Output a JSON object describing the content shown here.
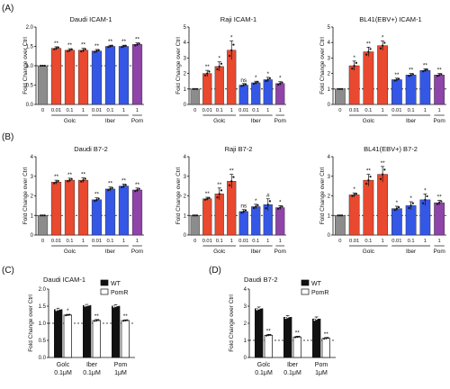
{
  "figure": {
    "panel_labels": [
      "(A)",
      "(B)",
      "(C)",
      "(D)"
    ]
  },
  "colors": {
    "ctrl": "#8c8c8c",
    "golc": "#e8492f",
    "iber": "#3557e6",
    "pom": "#8e44a8",
    "wt": "#111111",
    "pomr": "#ffffff"
  },
  "chart_data": [
    {
      "type": "bar",
      "panel": "(A)",
      "title": "Daudi ICAM-1",
      "ylabel": "Fold Change over Ctrl",
      "ylim": [
        0,
        2.0
      ],
      "yticks": [
        "0.0",
        "0.5",
        "1.0",
        "1.5",
        "2.0"
      ],
      "categories": [
        "0",
        "0.01",
        "0.1",
        "1",
        "0.01",
        "0.1",
        "1",
        "1"
      ],
      "groups": [
        "Golc",
        "Iber",
        "Pom"
      ],
      "values": [
        1.0,
        1.45,
        1.4,
        1.4,
        1.38,
        1.5,
        1.5,
        1.55
      ],
      "errors": [
        0.0,
        0.04,
        0.04,
        0.05,
        0.04,
        0.03,
        0.03,
        0.04
      ],
      "significance": [
        "",
        "**",
        "**",
        "**",
        "**",
        "**",
        "**",
        "**"
      ]
    },
    {
      "type": "bar",
      "panel": "(A)",
      "title": "Raji ICAM-1",
      "ylabel": "Fold Change over Ctrl",
      "ylim": [
        0,
        5
      ],
      "yticks": [
        "0",
        "1",
        "2",
        "3",
        "4",
        "5"
      ],
      "categories": [
        "0",
        "0.01",
        "0.1",
        "1",
        "0.01",
        "0.1",
        "1",
        "1"
      ],
      "groups": [
        "Golc",
        "Iber",
        "Pom"
      ],
      "values": [
        1.0,
        2.0,
        2.45,
        3.5,
        1.25,
        1.4,
        1.6,
        1.35
      ],
      "errors": [
        0.0,
        0.2,
        0.3,
        0.6,
        0.1,
        0.1,
        0.15,
        0.12
      ],
      "significance": [
        "",
        "**",
        "*",
        "*",
        "ns",
        "*",
        "*",
        "*"
      ]
    },
    {
      "type": "bar",
      "panel": "(A)",
      "title": "BL41(EBV+) ICAM-1",
      "ylabel": "Fold Change over Ctrl",
      "ylim": [
        0,
        5
      ],
      "yticks": [
        "0",
        "1",
        "2",
        "3",
        "4",
        "5"
      ],
      "categories": [
        "0",
        "0.01",
        "0.1",
        "1",
        "0.01",
        "0.1",
        "1",
        "1"
      ],
      "groups": [
        "Golc",
        "Iber",
        "Pom"
      ],
      "values": [
        1.0,
        2.5,
        3.4,
        3.8,
        1.6,
        1.9,
        2.2,
        1.9
      ],
      "errors": [
        0.0,
        0.3,
        0.3,
        0.3,
        0.1,
        0.1,
        0.1,
        0.1
      ],
      "significance": [
        "",
        "*",
        "**",
        "*",
        "**",
        "**",
        "**",
        "**"
      ]
    },
    {
      "type": "bar",
      "panel": "(B)",
      "title": "Daudi B7-2",
      "ylabel": "Fold Change over Ctrl",
      "ylim": [
        0,
        4
      ],
      "yticks": [
        "0",
        "1",
        "2",
        "3",
        "4"
      ],
      "categories": [
        "0",
        "0.01",
        "0.1",
        "1",
        "0.01",
        "0.1",
        "1",
        "1"
      ],
      "groups": [
        "Golc",
        "Iber",
        "Pom"
      ],
      "values": [
        1.0,
        2.7,
        2.8,
        2.8,
        1.8,
        2.35,
        2.5,
        2.3
      ],
      "errors": [
        0.0,
        0.1,
        0.1,
        0.12,
        0.1,
        0.1,
        0.1,
        0.1
      ],
      "significance": [
        "",
        "**",
        "**",
        "**",
        "**",
        "**",
        "**",
        "**"
      ]
    },
    {
      "type": "bar",
      "panel": "(B)",
      "title": "Raji B7-2",
      "ylabel": "Fold Change over Ctrl",
      "ylim": [
        0,
        4
      ],
      "yticks": [
        "0",
        "1",
        "2",
        "3",
        "4"
      ],
      "categories": [
        "0",
        "0.01",
        "0.1",
        "1",
        "0.01",
        "0.1",
        "1",
        "1"
      ],
      "groups": [
        "Golc",
        "Iber",
        "Pom"
      ],
      "values": [
        1.0,
        1.85,
        2.1,
        2.75,
        1.2,
        1.45,
        1.55,
        1.4
      ],
      "errors": [
        0.0,
        0.08,
        0.3,
        0.35,
        0.1,
        0.12,
        0.3,
        0.1
      ],
      "significance": [
        "",
        "**",
        "**",
        "**",
        "ns",
        "*",
        "#",
        "*"
      ]
    },
    {
      "type": "bar",
      "panel": "(B)",
      "title": "BL41(EBV+) B7-2",
      "ylabel": "Fold Change over Ctrl",
      "ylim": [
        0,
        4
      ],
      "yticks": [
        "0",
        "1",
        "2",
        "3",
        "4"
      ],
      "categories": [
        "0",
        "0.01",
        "0.1",
        "1",
        "0.01",
        "0.1",
        "1",
        "1"
      ],
      "groups": [
        "Golc",
        "Iber",
        "Pom"
      ],
      "values": [
        1.0,
        2.05,
        2.8,
        3.1,
        1.35,
        1.5,
        1.8,
        1.65
      ],
      "errors": [
        0.0,
        0.1,
        0.3,
        0.4,
        0.12,
        0.2,
        0.3,
        0.12
      ],
      "significance": [
        "",
        "*",
        "**",
        "**",
        "*",
        "*",
        "*",
        "**"
      ]
    },
    {
      "type": "bar",
      "panel": "(C)",
      "title": "Daudi ICAM-1",
      "ylabel": "Fold Change over Ctrl",
      "ylim": [
        0,
        2.0
      ],
      "yticks": [
        "0.0",
        "0.5",
        "1.0",
        "1.5",
        "2.0"
      ],
      "categories": [
        "Golc\n0.1μM",
        "Iber\n0.1μM",
        "Pom\n1μM"
      ],
      "series": [
        {
          "name": "WT",
          "values": [
            1.4,
            1.52,
            1.5
          ],
          "errors": [
            0.04,
            0.03,
            0.04
          ],
          "significance": [
            "",
            "",
            ""
          ]
        },
        {
          "name": "PomR",
          "values": [
            1.24,
            1.08,
            1.08
          ],
          "errors": [
            0.02,
            0.03,
            0.02
          ],
          "significance": [
            "*",
            "**",
            "**"
          ]
        }
      ],
      "legend": "top-right"
    },
    {
      "type": "bar",
      "panel": "(D)",
      "title": "Daudi B7-2",
      "ylabel": "Fold Change over Ctrl",
      "ylim": [
        0,
        4
      ],
      "yticks": [
        "0",
        "1",
        "2",
        "3",
        "4"
      ],
      "categories": [
        "Golc\n0.1μM",
        "Iber\n0.1μM",
        "Pom\n1μM"
      ],
      "series": [
        {
          "name": "WT",
          "values": [
            2.85,
            2.35,
            2.25
          ],
          "errors": [
            0.1,
            0.1,
            0.12
          ],
          "significance": [
            "",
            "",
            ""
          ]
        },
        {
          "name": "PomR",
          "values": [
            1.3,
            1.2,
            1.12
          ],
          "errors": [
            0.05,
            0.04,
            0.05
          ],
          "significance": [
            "**",
            "**",
            "**"
          ]
        }
      ],
      "legend": "top-right"
    }
  ]
}
